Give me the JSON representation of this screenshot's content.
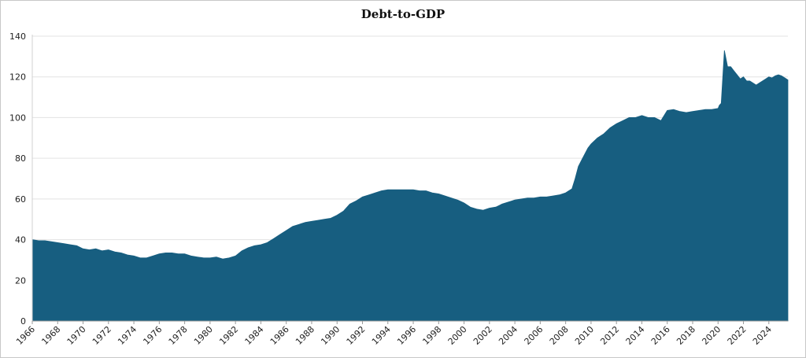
{
  "chart_data": {
    "type": "area",
    "title": "Debt-to-GDP",
    "xlabel": "",
    "ylabel": "",
    "ylim": [
      0,
      140
    ],
    "xlim": [
      1966.0,
      2025.5
    ],
    "yticks": [
      0,
      20,
      40,
      60,
      80,
      100,
      120,
      140
    ],
    "xticks": [
      "1966",
      "1968",
      "1970",
      "1972",
      "1974",
      "1976",
      "1978",
      "1980",
      "1982",
      "1984",
      "1986",
      "1988",
      "1990",
      "1992",
      "1994",
      "1996",
      "1998",
      "2000",
      "2002",
      "2004",
      "2006",
      "2008",
      "2010",
      "2012",
      "2014",
      "2016",
      "2018",
      "2020",
      "2022",
      "2024"
    ],
    "grid": true,
    "legend": "none",
    "fill_color": "#175e80",
    "series": [
      {
        "x": [
          1966.0,
          1966.5,
          1967.0,
          1967.5,
          1968.0,
          1968.5,
          1969.0,
          1969.5,
          1970.0,
          1970.5,
          1971.0,
          1971.5,
          1972.0,
          1972.5,
          1973.0,
          1973.5,
          1974.0,
          1974.5,
          1975.0,
          1975.5,
          1976.0,
          1976.5,
          1977.0,
          1977.5,
          1978.0,
          1978.5,
          1979.0,
          1979.5,
          1980.0,
          1980.5,
          1981.0,
          1981.5,
          1982.0,
          1982.5,
          1983.0,
          1983.5,
          1984.0,
          1984.5,
          1985.0,
          1985.5,
          1986.0,
          1986.5,
          1987.0,
          1987.5,
          1988.0,
          1988.5,
          1989.0,
          1989.5,
          1990.0,
          1990.5,
          1991.0,
          1991.5,
          1992.0,
          1992.5,
          1993.0,
          1993.5,
          1994.0,
          1994.5,
          1995.0,
          1995.5,
          1996.0,
          1996.5,
          1997.0,
          1997.5,
          1998.0,
          1998.5,
          1999.0,
          1999.5,
          2000.0,
          2000.5,
          2001.0,
          2001.5,
          2002.0,
          2002.5,
          2003.0,
          2003.5,
          2004.0,
          2004.5,
          2005.0,
          2005.5,
          2006.0,
          2006.5,
          2007.0,
          2007.5,
          2008.0,
          2008.25,
          2008.5,
          2008.75,
          2009.0,
          2009.25,
          2009.5,
          2009.75,
          2010.0,
          2010.5,
          2011.0,
          2011.5,
          2012.0,
          2012.5,
          2013.0,
          2013.5,
          2014.0,
          2014.5,
          2015.0,
          2015.5,
          2016.0,
          2016.5,
          2017.0,
          2017.5,
          2018.0,
          2018.5,
          2019.0,
          2019.5,
          2020.0,
          2020.1,
          2020.25,
          2020.5,
          2020.75,
          2021.0,
          2021.25,
          2021.5,
          2021.75,
          2022.0,
          2022.25,
          2022.5,
          2022.75,
          2023.0,
          2023.25,
          2023.5,
          2023.75,
          2024.0,
          2024.25,
          2024.5,
          2024.75,
          2025.0,
          2025.25,
          2025.5
        ],
        "values": [
          40,
          39.5,
          39.5,
          39,
          38.5,
          38,
          37.5,
          37,
          35.5,
          35,
          35.5,
          34.5,
          35,
          34,
          33.5,
          32.5,
          32,
          31,
          31,
          32,
          33,
          33.5,
          33.5,
          33,
          33,
          32,
          31.5,
          31,
          31,
          31.5,
          30.5,
          31,
          32,
          34.5,
          36,
          37,
          37.5,
          38.5,
          40.5,
          42.5,
          44.5,
          46.5,
          47.5,
          48.5,
          49,
          49.5,
          50,
          50.5,
          52,
          54,
          57.5,
          59,
          61,
          62,
          63,
          64,
          64.5,
          64.5,
          64.5,
          64.5,
          64.5,
          64,
          64,
          63,
          62.5,
          61.5,
          60.5,
          59.5,
          58,
          56,
          55,
          54.5,
          55.5,
          56,
          57.5,
          58.5,
          59.5,
          60,
          60.5,
          60.5,
          61,
          61,
          61.5,
          62,
          63,
          64,
          65,
          70,
          76,
          79,
          82,
          85,
          87,
          90,
          92,
          95,
          97,
          98.5,
          100,
          100,
          101,
          100,
          100,
          98.5,
          103.5,
          104,
          103,
          102.5,
          103,
          103.5,
          104,
          104,
          104.5,
          106,
          107,
          133,
          125,
          125,
          123,
          121,
          119,
          120,
          118,
          118,
          117,
          116,
          117,
          118,
          119,
          120,
          119.5,
          120.5,
          121,
          120.5,
          119.5,
          118.5
        ]
      }
    ]
  }
}
